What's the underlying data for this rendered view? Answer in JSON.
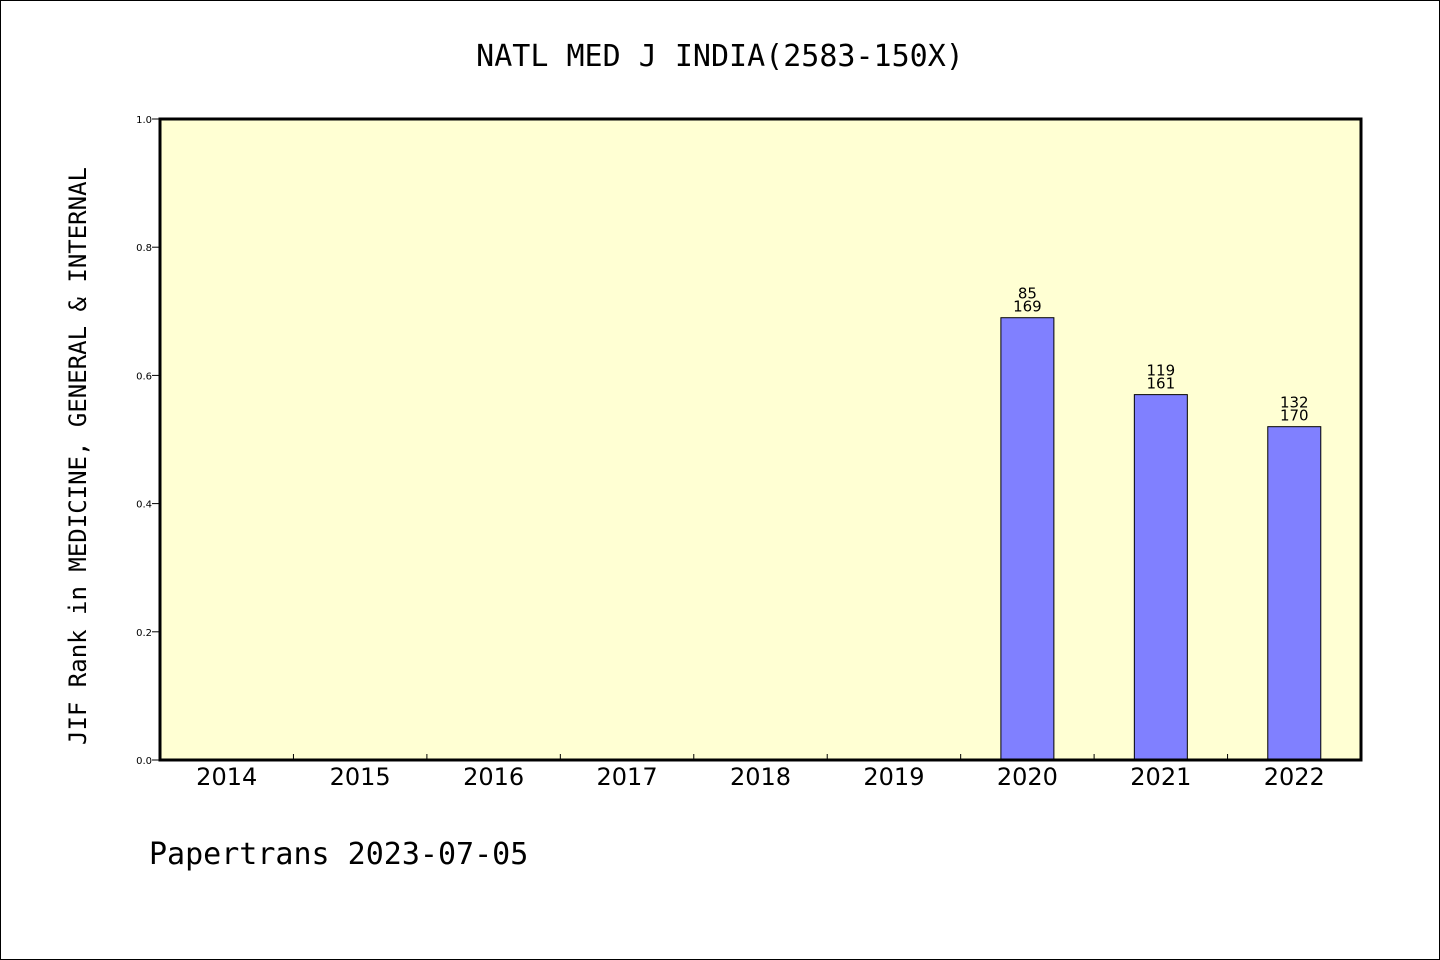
{
  "chart_data": {
    "type": "bar",
    "title": "NATL MED J INDIA(2583-150X)",
    "ylabel": "JIF Rank in MEDICINE, GENERAL & INTERNAL",
    "xlabel": "",
    "ylim": [
      0,
      1.0
    ],
    "yticks": [
      "0.0",
      "0.2",
      "0.4",
      "0.6",
      "0.8",
      "1.0"
    ],
    "categories": [
      "2014",
      "2015",
      "2016",
      "2017",
      "2018",
      "2019",
      "2020",
      "2021",
      "2022"
    ],
    "values": [
      null,
      null,
      null,
      null,
      null,
      null,
      0.69,
      0.57,
      0.52
    ],
    "bar_labels": [
      null,
      null,
      null,
      null,
      null,
      null,
      {
        "rank": "85",
        "total": "169"
      },
      {
        "rank": "119",
        "total": "161"
      },
      {
        "rank": "132",
        "total": "170"
      }
    ],
    "grid": false,
    "colors": {
      "plot_background": "#ffffd3",
      "bar_fill": "#8080ff",
      "bar_stroke": "#000000"
    }
  },
  "footer": "Papertrans 2023-07-05"
}
